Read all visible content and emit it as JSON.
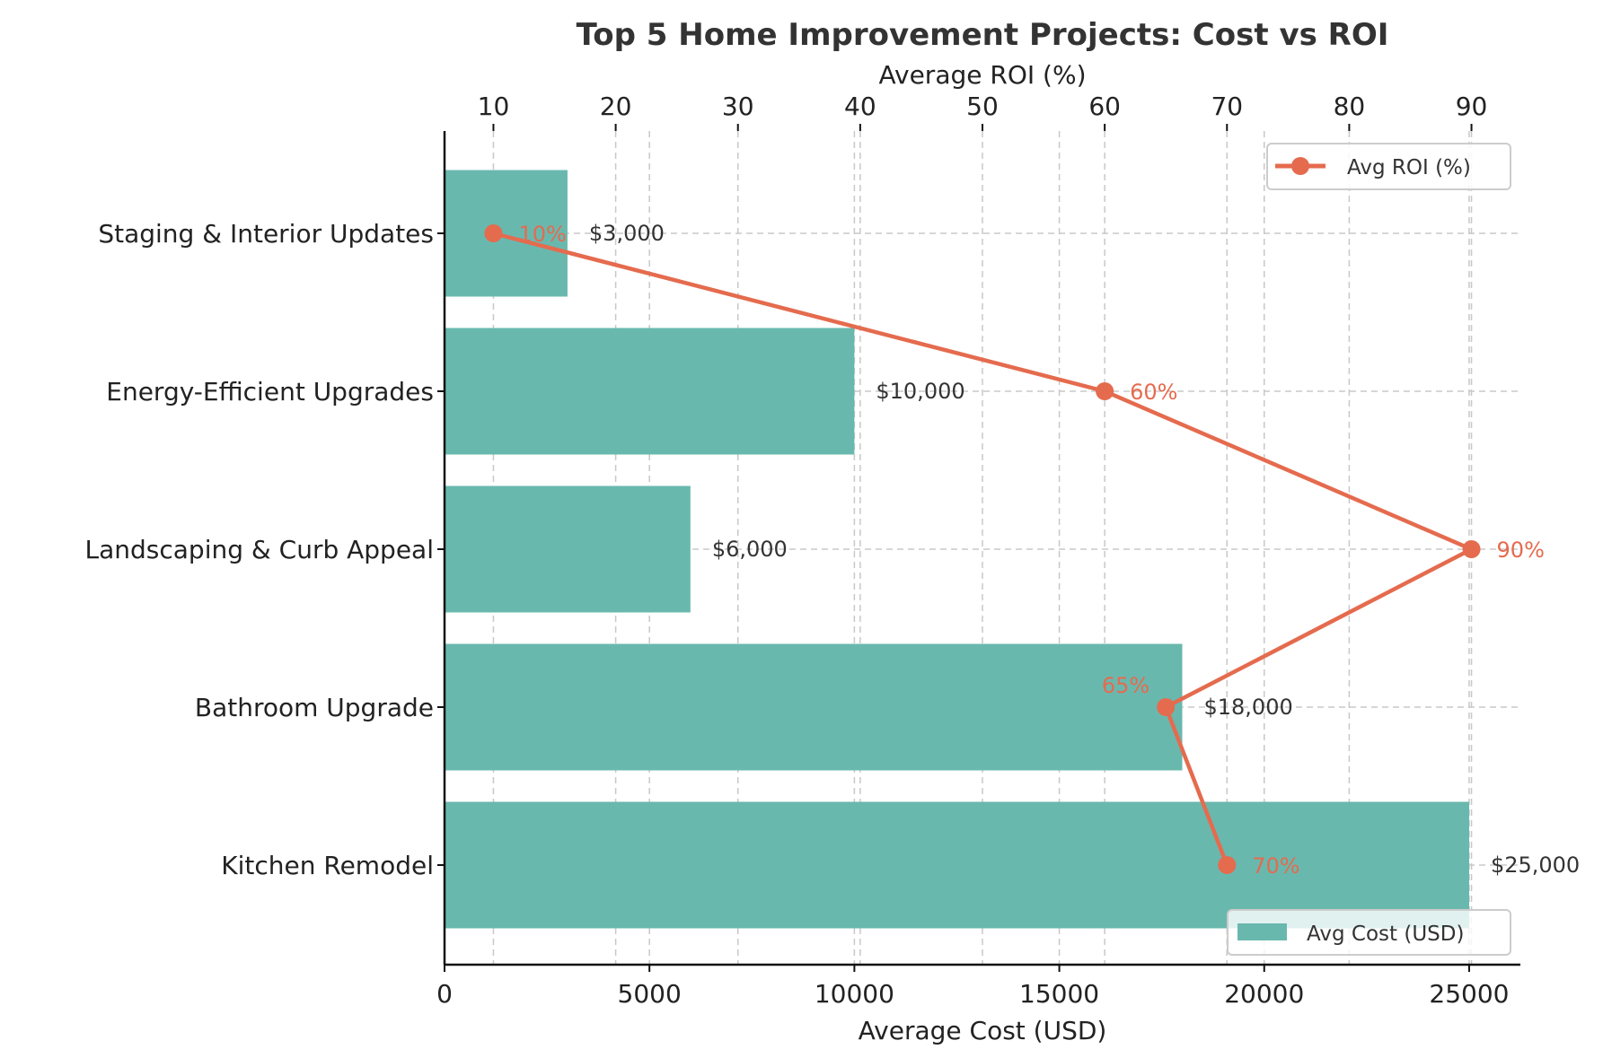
{
  "chart_data": {
    "type": "bar",
    "title": "Top 5 Home Improvement Projects: Cost vs ROI",
    "xlabel": "Average Cost (USD)",
    "x2label": "Average ROI (%)",
    "categories": [
      "Staging & Interior Updates",
      "Energy-Efficient Upgrades",
      "Landscaping & Curb Appeal",
      "Bathroom Upgrade",
      "Kitchen Remodel"
    ],
    "series": [
      {
        "name": "Avg Cost (USD)",
        "type": "bar",
        "values": [
          3000,
          10000,
          6000,
          18000,
          25000
        ],
        "labels": [
          "$3,000",
          "$10,000",
          "$6,000",
          "$18,000",
          "$25,000"
        ],
        "color": "#69b8ae"
      },
      {
        "name": "Avg ROI (%)",
        "type": "line",
        "values": [
          10,
          60,
          90,
          65,
          70
        ],
        "labels": [
          "10%",
          "60%",
          "90%",
          "65%",
          "70%"
        ],
        "color": "#e56b4e"
      }
    ],
    "xlim": [
      0,
      26250
    ],
    "x2lim": [
      6,
      94
    ],
    "xticks": [
      0,
      5000,
      10000,
      15000,
      20000,
      25000
    ],
    "x2ticks": [
      10,
      20,
      30,
      40,
      50,
      60,
      70,
      80,
      90
    ],
    "grid": true,
    "legend_bar": "bottom-right",
    "legend_line": "top-right"
  }
}
